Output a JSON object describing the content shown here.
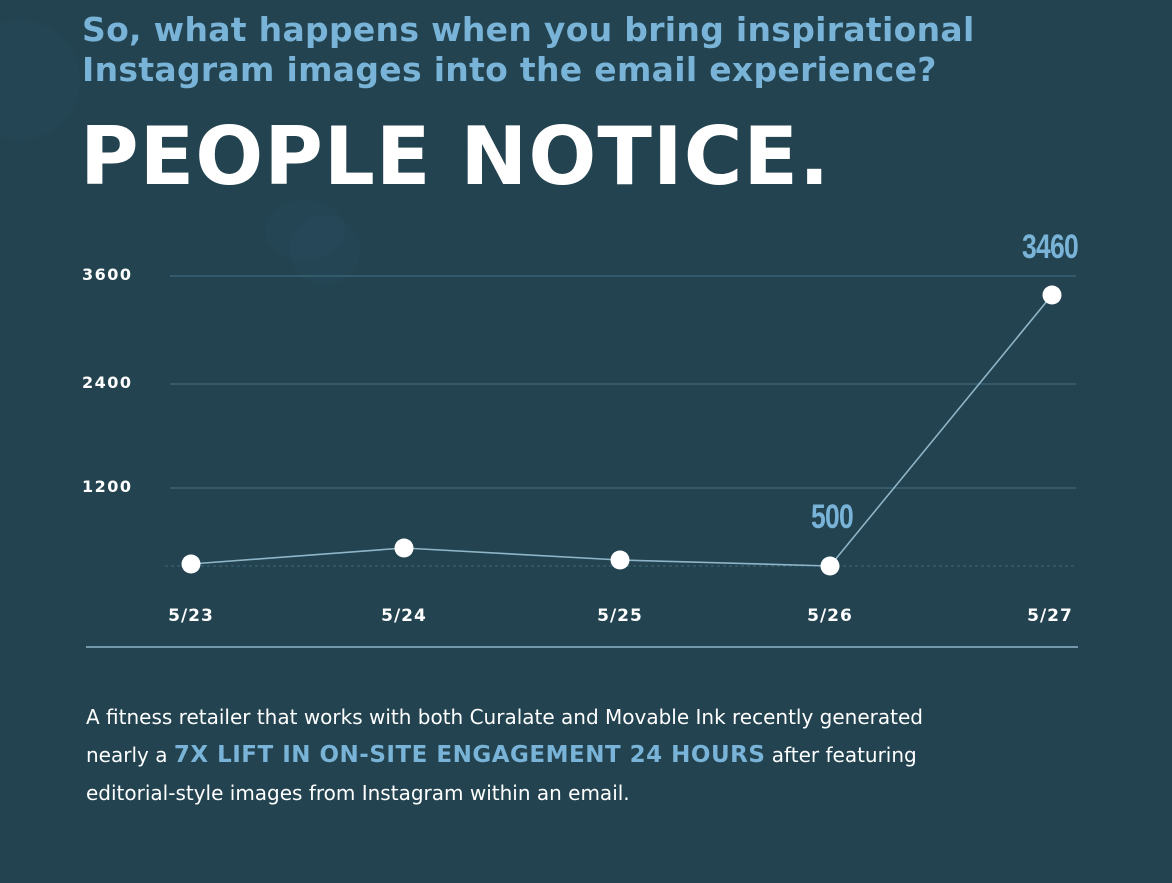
{
  "header": {
    "subtitle_line1": "So, what happens when you bring inspirational",
    "subtitle_line2": "Instagram images into the email experience?",
    "headline": "PEOPLE NOTICE."
  },
  "colors": {
    "background": "#22434f",
    "accent": "#79b4d8",
    "text": "#ffffff",
    "gridline": "#3a6275",
    "line": "#8fb5c8"
  },
  "chart_data": {
    "type": "line",
    "title": "PEOPLE NOTICE.",
    "xlabel": "",
    "ylabel": "",
    "categories": [
      "5/23",
      "5/24",
      "5/25",
      "5/26",
      "5/27"
    ],
    "series": [
      {
        "name": "On-site engagement",
        "values": [
          510,
          690,
          550,
          500,
          3460
        ]
      }
    ],
    "yticks": [
      "3600",
      "2400",
      "1200"
    ],
    "ylim": [
      0,
      3600
    ],
    "grid": true,
    "legend": "none",
    "annotations": [
      {
        "x": "5/26",
        "label": "500"
      },
      {
        "x": "5/27",
        "label": "3460"
      }
    ],
    "baseline_dashed": true
  },
  "body": {
    "line1": "A fitness retailer that works with both Curalate and Movable Ink recently generated",
    "line2_pre": "nearly a ",
    "line2_highlight": "7X LIFT IN ON-SITE ENGAGEMENT 24 HOURS",
    "line2_post": " after featuring",
    "line3": "editorial-style images from Instagram within an email."
  }
}
